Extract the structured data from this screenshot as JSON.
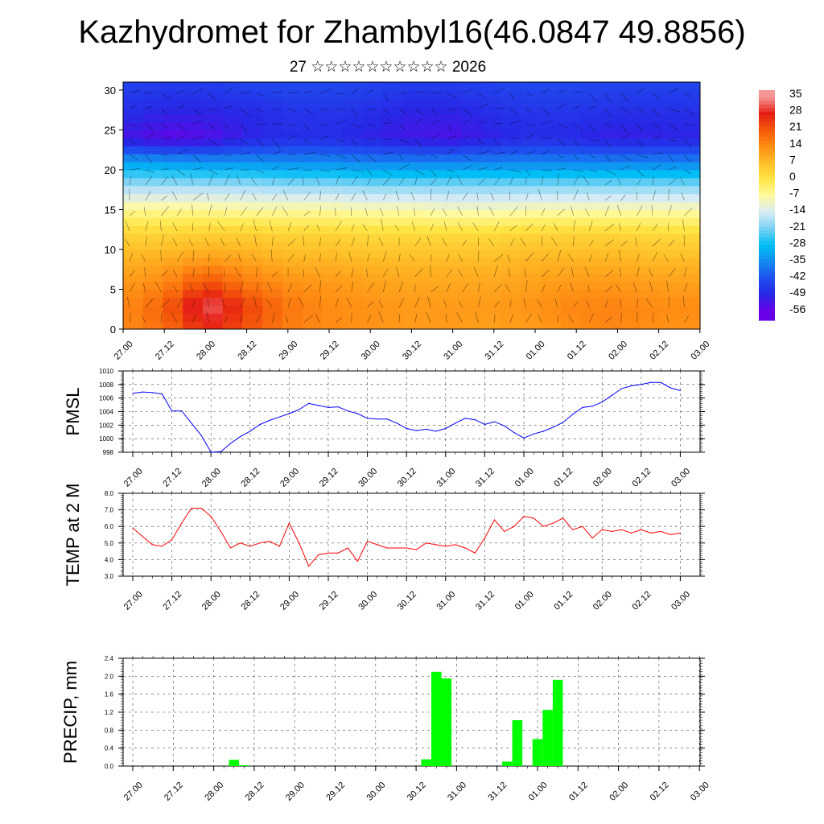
{
  "title": "Kazhydromet for Zhambyl16(46.0847 49.8856)",
  "subtitle": "27 ☆☆☆☆☆☆☆☆☆☆ 2026",
  "time_labels": [
    "27.00",
    "27.12",
    "28.00",
    "28.12",
    "29.00",
    "29.12",
    "30.00",
    "30.12",
    "31.00",
    "31.12",
    "01.00",
    "01.12",
    "02.00",
    "02.12",
    "03.00"
  ],
  "colors": {
    "pmsl": "#0000ff",
    "temp": "#ff0000",
    "precip": "#00ff00",
    "grid": "#000000"
  },
  "chart_data": [
    {
      "type": "heatmap",
      "name": "cross-section",
      "title": "",
      "ylabel": "",
      "ylim": [
        0,
        31
      ],
      "yticks": [
        0,
        5,
        10,
        15,
        20,
        25,
        30
      ],
      "colorbar_labels": [
        "35",
        "28",
        "21",
        "14",
        "7",
        "0",
        "-7",
        "-14",
        "-21",
        "-28",
        "-35",
        "-42",
        "-49",
        "-56"
      ],
      "temperature_rows": [
        {
          "height": 0,
          "values": [
            14,
            18,
            27,
            22,
            16,
            14,
            13,
            12,
            12,
            11,
            12,
            14,
            15,
            13,
            13
          ]
        },
        {
          "height": 3,
          "values": [
            14,
            20,
            33,
            24,
            17,
            14,
            13,
            12,
            12,
            12,
            13,
            15,
            15,
            14,
            14
          ]
        },
        {
          "height": 6,
          "values": [
            12,
            14,
            22,
            16,
            13,
            12,
            11,
            10,
            10,
            10,
            11,
            12,
            12,
            11,
            11
          ]
        },
        {
          "height": 9,
          "values": [
            8,
            9,
            11,
            10,
            8,
            8,
            7,
            7,
            7,
            7,
            8,
            8,
            8,
            7,
            7
          ]
        },
        {
          "height": 12,
          "values": [
            3,
            3,
            4,
            4,
            3,
            3,
            2,
            2,
            2,
            2,
            3,
            3,
            3,
            2,
            2
          ]
        },
        {
          "height": 15,
          "values": [
            -6,
            -6,
            -6,
            -7,
            -7,
            -7,
            -8,
            -8,
            -9,
            -9,
            -8,
            -8,
            -8,
            -8,
            -8
          ]
        },
        {
          "height": 18,
          "values": [
            -18,
            -18,
            -18,
            -18,
            -19,
            -19,
            -20,
            -20,
            -20,
            -20,
            -20,
            -20,
            -20,
            -20,
            -20
          ]
        },
        {
          "height": 21,
          "values": [
            -32,
            -33,
            -34,
            -34,
            -35,
            -35,
            -36,
            -36,
            -36,
            -36,
            -36,
            -36,
            -36,
            -36,
            -36
          ]
        },
        {
          "height": 24,
          "values": [
            -52,
            -55,
            -54,
            -50,
            -48,
            -48,
            -50,
            -52,
            -53,
            -50,
            -48,
            -49,
            -51,
            -50,
            -50
          ]
        },
        {
          "height": 27,
          "values": [
            -48,
            -50,
            -50,
            -49,
            -47,
            -47,
            -48,
            -50,
            -50,
            -48,
            -47,
            -47,
            -48,
            -48,
            -48
          ]
        },
        {
          "height": 31,
          "values": [
            -44,
            -45,
            -45,
            -44,
            -43,
            -43,
            -44,
            -45,
            -45,
            -44,
            -43,
            -43,
            -44,
            -44,
            -44
          ]
        }
      ]
    },
    {
      "type": "line",
      "name": "pmsl",
      "ylabel": "PMSL",
      "ylim": [
        998,
        1010
      ],
      "yticks": [
        998,
        1000,
        1002,
        1004,
        1006,
        1008,
        1010
      ],
      "x_index": [
        0,
        0.25,
        0.5,
        0.75,
        1,
        1.25,
        1.5,
        1.75,
        2,
        2.25,
        2.5,
        2.75,
        3,
        3.25,
        3.5,
        3.75,
        4,
        4.25,
        4.5,
        4.75,
        5,
        5.25,
        5.5,
        5.75,
        6,
        6.25,
        6.5,
        6.75,
        7,
        7.25,
        7.5,
        7.75,
        8,
        8.25,
        8.5,
        8.75,
        9,
        9.25,
        9.5,
        9.75,
        10,
        10.25,
        10.5,
        10.75,
        11,
        11.25,
        11.5,
        11.75,
        12,
        12.25,
        12.5,
        12.75,
        13,
        13.25,
        13.5,
        13.75,
        14
      ],
      "values": [
        1006.7,
        1006.9,
        1006.8,
        1006.6,
        1004.1,
        1004.1,
        1002.3,
        1000.5,
        998.0,
        998.1,
        999.3,
        1000.3,
        1001.1,
        1002.1,
        1002.7,
        1003.2,
        1003.7,
        1004.3,
        1005.2,
        1004.9,
        1004.6,
        1004.7,
        1004.1,
        1003.7,
        1003.0,
        1002.9,
        1002.9,
        1002.3,
        1001.5,
        1001.2,
        1001.4,
        1001.1,
        1001.5,
        1002.3,
        1003.0,
        1002.8,
        1002.1,
        1002.5,
        1001.9,
        1000.9,
        1000.1,
        1000.7,
        1001.1,
        1001.7,
        1002.4,
        1003.6,
        1004.6,
        1004.8,
        1005.4,
        1006.4,
        1007.4,
        1007.8,
        1008.0,
        1008.3,
        1008.3,
        1007.5,
        1007.1
      ]
    },
    {
      "type": "line",
      "name": "temp",
      "ylabel": "TEMP at 2 M",
      "ylim": [
        3.0,
        8.0
      ],
      "yticks": [
        "3.0",
        "4.0",
        "5.0",
        "6.0",
        "7.0",
        "8.0"
      ],
      "x_index": [
        0,
        0.25,
        0.5,
        0.75,
        1,
        1.25,
        1.5,
        1.75,
        2,
        2.25,
        2.5,
        2.75,
        3,
        3.25,
        3.5,
        3.75,
        4,
        4.25,
        4.5,
        4.75,
        5,
        5.25,
        5.5,
        5.75,
        6,
        6.25,
        6.5,
        6.75,
        7,
        7.25,
        7.5,
        7.75,
        8,
        8.25,
        8.5,
        8.75,
        9,
        9.25,
        9.5,
        9.75,
        10,
        10.25,
        10.5,
        10.75,
        11,
        11.25,
        11.5,
        11.75,
        12,
        12.25,
        12.5,
        12.75,
        13,
        13.25,
        13.5,
        13.75,
        14
      ],
      "values": [
        5.9,
        5.4,
        4.9,
        4.8,
        5.2,
        6.2,
        7.1,
        7.1,
        6.6,
        5.7,
        4.7,
        5.0,
        4.8,
        5.0,
        5.1,
        4.8,
        6.2,
        5.0,
        3.6,
        4.3,
        4.4,
        4.4,
        4.7,
        3.9,
        5.1,
        4.9,
        4.7,
        4.7,
        4.7,
        4.6,
        5.0,
        4.9,
        4.8,
        4.9,
        4.7,
        4.4,
        5.3,
        6.4,
        5.7,
        6.0,
        6.6,
        6.5,
        6.0,
        6.2,
        6.5,
        5.8,
        6.0,
        5.3,
        5.8,
        5.7,
        5.8,
        5.6,
        5.8,
        5.6,
        5.7,
        5.5,
        5.6
      ]
    },
    {
      "type": "bar",
      "name": "precip",
      "ylabel": "PRECIP, mm",
      "ylim": [
        0,
        2.4
      ],
      "yticks": [
        "0.0",
        "0.4",
        "0.8",
        "1.2",
        "1.6",
        "2.0",
        "2.4"
      ],
      "x_index": [
        2.5,
        2.75,
        7.25,
        7.5,
        7.75,
        9.25,
        9.5,
        10.0,
        10.25,
        10.5
      ],
      "values": [
        0.14,
        0.02,
        0.15,
        2.1,
        1.95,
        0.1,
        1.02,
        0.6,
        1.25,
        1.92
      ]
    }
  ]
}
